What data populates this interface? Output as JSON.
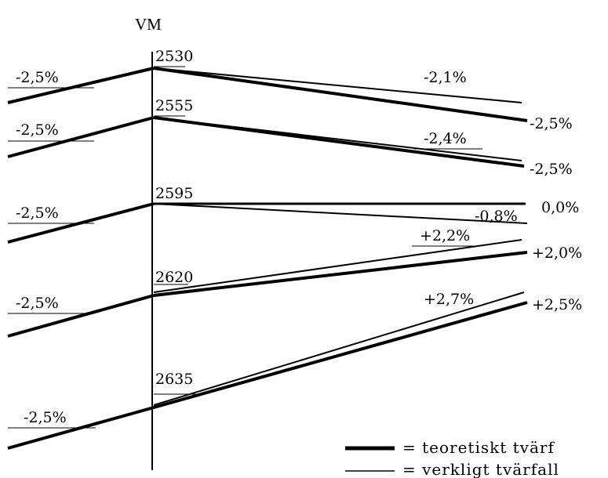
{
  "title": "VM",
  "sections": [
    {
      "station": "2530",
      "left_slope": "-2,5%",
      "actual_label": "-2,1%",
      "theoretical_label": "-2,5%"
    },
    {
      "station": "2555",
      "left_slope": "-2,5%",
      "actual_label": "-2,4%",
      "theoretical_label": "-2,5%"
    },
    {
      "station": "2595",
      "left_slope": "-2,5%",
      "actual_label": "-0,8%",
      "theoretical_label": "0,0%"
    },
    {
      "station": "2620",
      "left_slope": "-2,5%",
      "actual_label": "+2,2%",
      "theoretical_label": "+2,0%"
    },
    {
      "station": "2635",
      "left_slope": "-2,5%",
      "actual_label": "+2,7%",
      "theoretical_label": "+2,5%"
    }
  ],
  "legend": {
    "theoretical": "= teoretiskt tvärf",
    "actual": "= verkligt tvärfall"
  },
  "colors": {
    "line": "#000000",
    "background": "#ffffff"
  }
}
